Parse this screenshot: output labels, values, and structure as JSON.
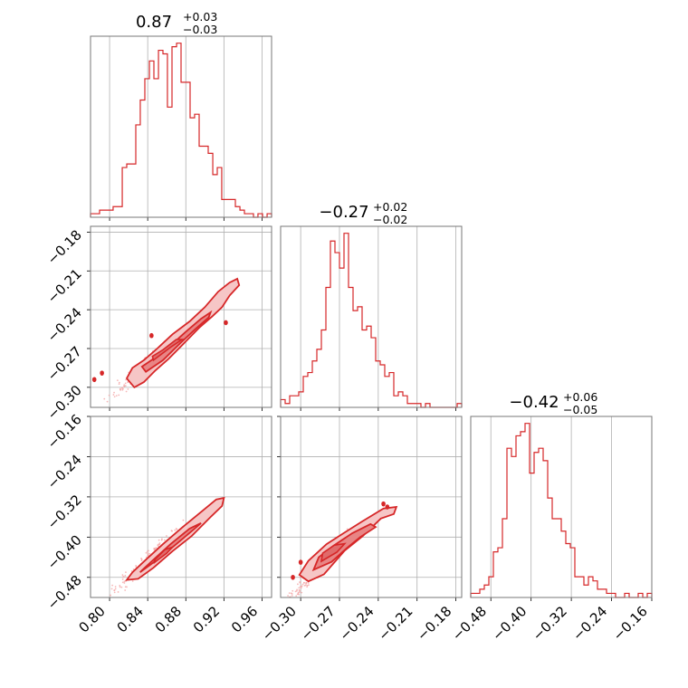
{
  "chart_data": {
    "type": "corner",
    "colors": {
      "main": "#d62728",
      "light": "#f4a6a6",
      "fill": "#e88585"
    },
    "grid": true,
    "panels": [
      {
        "id": "hist-0",
        "type": "step-histogram",
        "title": {
          "value": "0.87",
          "plus": "+0.03",
          "minus": "−0.03"
        },
        "xlim": [
          0.78,
          0.97
        ],
        "x_ticks": [
          0.8,
          0.84,
          0.88,
          0.92,
          0.96
        ],
        "bins": [
          0.78,
          0.7848,
          0.7895,
          0.7943,
          0.799,
          0.8037,
          0.8085,
          0.8133,
          0.818,
          0.8228,
          0.8275,
          0.8322,
          0.837,
          0.8418,
          0.8465,
          0.8513,
          0.856,
          0.8607,
          0.8655,
          0.8703,
          0.875,
          0.8798,
          0.8845,
          0.8892,
          0.894,
          0.8988,
          0.9035,
          0.9083,
          0.913,
          0.9177,
          0.9225,
          0.9273,
          0.932,
          0.9368,
          0.9415,
          0.9463,
          0.951,
          0.9557,
          0.9605,
          0.9653,
          0.97
        ],
        "values": [
          1,
          1,
          2,
          2,
          2,
          3,
          3,
          14,
          15,
          15,
          26,
          33,
          39,
          44,
          39,
          47,
          46,
          31,
          48,
          49,
          38,
          38,
          28,
          29,
          20,
          20,
          18,
          12,
          14,
          5,
          5,
          5,
          3,
          2,
          1,
          1,
          0,
          1,
          0,
          1
        ]
      },
      {
        "id": "hist-1",
        "type": "step-histogram",
        "title": {
          "value": "−0.27",
          "plus": "+0.02",
          "minus": "−0.02"
        },
        "xlim": [
          -0.3155,
          -0.1755
        ],
        "x_ticks": [
          -0.3,
          -0.27,
          -0.24,
          -0.21,
          -0.18
        ],
        "bins": [
          -0.3155,
          -0.312,
          -0.3085,
          -0.305,
          -0.3015,
          -0.298,
          -0.2945,
          -0.291,
          -0.2875,
          -0.284,
          -0.2805,
          -0.277,
          -0.2735,
          -0.27,
          -0.2665,
          -0.263,
          -0.2595,
          -0.256,
          -0.2525,
          -0.249,
          -0.2455,
          -0.242,
          -0.2385,
          -0.235,
          -0.2315,
          -0.228,
          -0.2245,
          -0.221,
          -0.2175,
          -0.214,
          -0.2105,
          -0.207,
          -0.2035,
          -0.2,
          -0.1965,
          -0.193,
          -0.1895,
          -0.186,
          -0.1825,
          -0.179,
          -0.1755
        ],
        "values": [
          2,
          1,
          3,
          3,
          4,
          8,
          9,
          12,
          15,
          20,
          31,
          43,
          40,
          36,
          45,
          31,
          25,
          26,
          20,
          21,
          18,
          12,
          11,
          8,
          9,
          3,
          4,
          3,
          1,
          1,
          1,
          0,
          1,
          0,
          0,
          0,
          0,
          0,
          0,
          1
        ]
      },
      {
        "id": "hist-2",
        "type": "step-histogram",
        "title": {
          "value": "−0.42",
          "plus": "+0.06",
          "minus": "−0.05"
        },
        "xlim": [
          -0.52,
          -0.16
        ],
        "x_ticks": [
          -0.48,
          -0.4,
          -0.32,
          -0.24,
          -0.16
        ],
        "bins": [
          -0.52,
          -0.511,
          -0.502,
          -0.493,
          -0.484,
          -0.475,
          -0.466,
          -0.457,
          -0.448,
          -0.439,
          -0.43,
          -0.421,
          -0.412,
          -0.403,
          -0.394,
          -0.385,
          -0.376,
          -0.367,
          -0.358,
          -0.349,
          -0.34,
          -0.331,
          -0.322,
          -0.313,
          -0.304,
          -0.295,
          -0.286,
          -0.277,
          -0.268,
          -0.259,
          -0.25,
          -0.241,
          -0.232,
          -0.223,
          -0.214,
          -0.205,
          -0.196,
          -0.187,
          -0.178,
          -0.169,
          -0.16
        ],
        "values": [
          1,
          1,
          2,
          3,
          5,
          11,
          12,
          19,
          36,
          34,
          39,
          40,
          42,
          30,
          35,
          36,
          33,
          24,
          19,
          19,
          16,
          13,
          12,
          5,
          5,
          3,
          5,
          4,
          2,
          2,
          1,
          1,
          0,
          0,
          1,
          0,
          0,
          1,
          0,
          1
        ]
      },
      {
        "id": "scatter-1-0",
        "type": "2d-contour",
        "xlim": [
          0.78,
          0.97
        ],
        "ylim": [
          -0.3155,
          -0.1755
        ],
        "y_ticks": [
          -0.18,
          -0.21,
          -0.24,
          -0.27,
          -0.3
        ],
        "ridge": {
          "x0": 0.82,
          "y0": -0.295,
          "slope": 0.6964
        },
        "outer": [
          [
            0.818,
            -0.293
          ],
          [
            0.826,
            -0.3
          ],
          [
            0.836,
            -0.296
          ],
          [
            0.848,
            -0.287
          ],
          [
            0.862,
            -0.278
          ],
          [
            0.878,
            -0.266
          ],
          [
            0.894,
            -0.254
          ],
          [
            0.908,
            -0.245
          ],
          [
            0.918,
            -0.238
          ],
          [
            0.926,
            -0.229
          ],
          [
            0.936,
            -0.221
          ],
          [
            0.934,
            -0.216
          ],
          [
            0.926,
            -0.219
          ],
          [
            0.914,
            -0.226
          ],
          [
            0.9,
            -0.238
          ],
          [
            0.884,
            -0.249
          ],
          [
            0.866,
            -0.259
          ],
          [
            0.85,
            -0.27
          ],
          [
            0.836,
            -0.279
          ],
          [
            0.824,
            -0.285
          ]
        ],
        "inner": [
          [
            0.838,
            -0.288
          ],
          [
            0.856,
            -0.279
          ],
          [
            0.874,
            -0.266
          ],
          [
            0.89,
            -0.255
          ],
          [
            0.904,
            -0.246
          ],
          [
            0.906,
            -0.242
          ],
          [
            0.896,
            -0.247
          ],
          [
            0.88,
            -0.257
          ],
          [
            0.862,
            -0.269
          ],
          [
            0.846,
            -0.278
          ],
          [
            0.834,
            -0.284
          ]
        ],
        "core": [
          [
            0.846,
            -0.279
          ],
          [
            0.864,
            -0.269
          ],
          [
            0.876,
            -0.263
          ],
          [
            0.87,
            -0.263
          ],
          [
            0.856,
            -0.271
          ],
          [
            0.845,
            -0.276
          ]
        ],
        "islands": [
          [
            0.784,
            -0.294
          ],
          [
            0.792,
            -0.289
          ],
          [
            0.922,
            -0.25
          ],
          [
            0.844,
            -0.26
          ]
        ]
      },
      {
        "id": "scatter-2-0",
        "type": "2d-contour",
        "xlim": [
          0.78,
          0.97
        ],
        "ylim": [
          -0.52,
          -0.16
        ],
        "y_ticks": [
          -0.16,
          -0.24,
          -0.32,
          -0.4,
          -0.48
        ],
        "ridge": {
          "x0": 0.82,
          "y0": -0.48,
          "slope": 1.8
        },
        "outer": [
          [
            0.818,
            -0.485
          ],
          [
            0.83,
            -0.483
          ],
          [
            0.846,
            -0.461
          ],
          [
            0.866,
            -0.428
          ],
          [
            0.886,
            -0.398
          ],
          [
            0.906,
            -0.36
          ],
          [
            0.918,
            -0.338
          ],
          [
            0.92,
            -0.322
          ],
          [
            0.912,
            -0.325
          ],
          [
            0.896,
            -0.35
          ],
          [
            0.876,
            -0.381
          ],
          [
            0.856,
            -0.414
          ],
          [
            0.838,
            -0.445
          ],
          [
            0.824,
            -0.47
          ]
        ],
        "inner": [
          [
            0.832,
            -0.47
          ],
          [
            0.85,
            -0.445
          ],
          [
            0.87,
            -0.414
          ],
          [
            0.89,
            -0.382
          ],
          [
            0.896,
            -0.372
          ],
          [
            0.884,
            -0.383
          ],
          [
            0.864,
            -0.414
          ],
          [
            0.846,
            -0.445
          ],
          [
            0.834,
            -0.466
          ]
        ],
        "core": [
          [
            0.846,
            -0.452
          ],
          [
            0.86,
            -0.432
          ],
          [
            0.866,
            -0.42
          ],
          [
            0.858,
            -0.425
          ],
          [
            0.848,
            -0.444
          ]
        ],
        "islands": []
      },
      {
        "id": "scatter-2-1",
        "type": "2d-contour",
        "xlim": [
          -0.3155,
          -0.1755
        ],
        "ylim": [
          -0.52,
          -0.16
        ],
        "y_ticks": [],
        "ridge": {
          "x0": -0.3,
          "y0": -0.5,
          "slope": 2.75
        },
        "outer": [
          [
            -0.301,
            -0.475
          ],
          [
            -0.294,
            -0.488
          ],
          [
            -0.282,
            -0.474
          ],
          [
            -0.266,
            -0.427
          ],
          [
            -0.252,
            -0.398
          ],
          [
            -0.238,
            -0.363
          ],
          [
            -0.228,
            -0.354
          ],
          [
            -0.226,
            -0.34
          ],
          [
            -0.236,
            -0.343
          ],
          [
            -0.252,
            -0.368
          ],
          [
            -0.266,
            -0.391
          ],
          [
            -0.28,
            -0.414
          ],
          [
            -0.294,
            -0.447
          ]
        ],
        "inner": [
          [
            -0.29,
            -0.465
          ],
          [
            -0.276,
            -0.449
          ],
          [
            -0.264,
            -0.421
          ],
          [
            -0.254,
            -0.4
          ],
          [
            -0.242,
            -0.38
          ],
          [
            -0.246,
            -0.374
          ],
          [
            -0.26,
            -0.392
          ],
          [
            -0.274,
            -0.416
          ],
          [
            -0.286,
            -0.44
          ]
        ],
        "core": [
          [
            -0.284,
            -0.448
          ],
          [
            -0.272,
            -0.43
          ],
          [
            -0.266,
            -0.413
          ],
          [
            -0.274,
            -0.416
          ],
          [
            -0.283,
            -0.432
          ]
        ],
        "islands": [
          [
            -0.306,
            -0.48
          ],
          [
            -0.236,
            -0.334
          ],
          [
            -0.233,
            -0.34
          ],
          [
            -0.3,
            -0.45
          ]
        ]
      }
    ]
  }
}
